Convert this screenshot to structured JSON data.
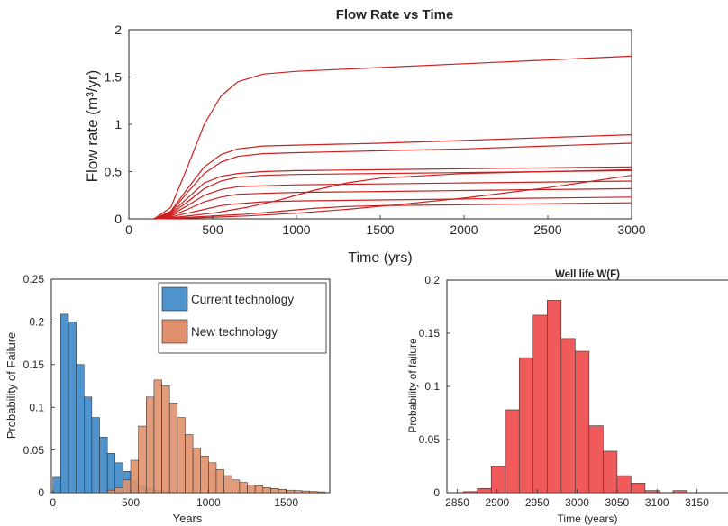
{
  "chart_data": [
    {
      "type": "line",
      "title": "Flow Rate vs Time",
      "xlabel": "Time (yrs)",
      "ylabel": "Flow rate (m³/yr)",
      "xlim": [
        0,
        3000
      ],
      "ylim": [
        0,
        2
      ],
      "xticks": [
        "0",
        "500",
        "1000",
        "1500",
        "2000",
        "2500",
        "3000"
      ],
      "yticks": [
        "0",
        "0.5",
        "1",
        "1.5",
        "2"
      ],
      "grid": false,
      "series_color": "#cc1f1f",
      "series": [
        {
          "x": [
            150,
            250,
            350,
            450,
            550,
            650,
            800,
            1000,
            1500,
            2000,
            2500,
            3000
          ],
          "y": [
            0,
            0.12,
            0.55,
            1.0,
            1.3,
            1.45,
            1.53,
            1.56,
            1.6,
            1.64,
            1.68,
            1.72
          ]
        },
        {
          "x": [
            150,
            250,
            350,
            450,
            550,
            650,
            800,
            1000,
            1500,
            2000,
            2500,
            3000
          ],
          "y": [
            0,
            0.08,
            0.32,
            0.55,
            0.68,
            0.74,
            0.77,
            0.78,
            0.8,
            0.83,
            0.86,
            0.89
          ]
        },
        {
          "x": [
            150,
            250,
            350,
            450,
            550,
            650,
            800,
            1000,
            1500,
            2000,
            2500,
            3000
          ],
          "y": [
            0,
            0.07,
            0.28,
            0.48,
            0.6,
            0.66,
            0.69,
            0.7,
            0.72,
            0.74,
            0.77,
            0.8
          ]
        },
        {
          "x": [
            150,
            250,
            350,
            450,
            550,
            650,
            800,
            1000,
            1500,
            2000,
            2500,
            3000
          ],
          "y": [
            0,
            0.06,
            0.22,
            0.38,
            0.45,
            0.48,
            0.5,
            0.51,
            0.52,
            0.53,
            0.54,
            0.55
          ]
        },
        {
          "x": [
            150,
            250,
            350,
            450,
            550,
            650,
            800,
            1000,
            1500,
            2000,
            2500,
            3000
          ],
          "y": [
            0,
            0.05,
            0.18,
            0.32,
            0.4,
            0.44,
            0.46,
            0.47,
            0.48,
            0.49,
            0.5,
            0.51
          ]
        },
        {
          "x": [
            150,
            250,
            350,
            450,
            550,
            650,
            800,
            1000,
            1500,
            2000,
            2500,
            3000
          ],
          "y": [
            0,
            0.04,
            0.14,
            0.25,
            0.31,
            0.34,
            0.35,
            0.36,
            0.37,
            0.38,
            0.39,
            0.4
          ]
        },
        {
          "x": [
            150,
            250,
            350,
            450,
            550,
            650,
            800,
            1000,
            1500,
            2000,
            2500,
            3000
          ],
          "y": [
            0,
            0.03,
            0.1,
            0.18,
            0.23,
            0.26,
            0.27,
            0.28,
            0.29,
            0.3,
            0.31,
            0.32
          ]
        },
        {
          "x": [
            150,
            250,
            350,
            450,
            550,
            650,
            800,
            1000,
            1500,
            2000,
            2500,
            3000
          ],
          "y": [
            0,
            0.02,
            0.06,
            0.1,
            0.14,
            0.16,
            0.18,
            0.19,
            0.2,
            0.21,
            0.22,
            0.23
          ]
        },
        {
          "x": [
            150,
            300,
            500,
            700,
            900,
            1100,
            1300,
            1500,
            2000,
            2500,
            3000
          ],
          "y": [
            0,
            0.02,
            0.06,
            0.12,
            0.2,
            0.3,
            0.38,
            0.43,
            0.48,
            0.5,
            0.52
          ]
        },
        {
          "x": [
            150,
            400,
            700,
            1000,
            1300,
            1600,
            2000,
            2500,
            3000
          ],
          "y": [
            0,
            0.01,
            0.03,
            0.06,
            0.1,
            0.15,
            0.22,
            0.33,
            0.46
          ]
        },
        {
          "x": [
            150,
            300,
            500,
            700,
            900,
            1100,
            1300,
            1500,
            2000,
            2500,
            3000
          ],
          "y": [
            0,
            0.01,
            0.03,
            0.05,
            0.08,
            0.11,
            0.13,
            0.14,
            0.15,
            0.16,
            0.17
          ]
        }
      ]
    },
    {
      "type": "bar",
      "subtype": "histogram",
      "xlabel": "Years",
      "ylabel": "Probability of Failure",
      "xlim": [
        -10,
        1780
      ],
      "ylim": [
        0,
        0.25
      ],
      "xticks": [
        "0",
        "500",
        "1000",
        "1500"
      ],
      "yticks": [
        "0",
        "0.05",
        "0.1",
        "0.15",
        "0.2",
        "0.25"
      ],
      "legend_position": "top-right",
      "series": [
        {
          "name": "Current technology",
          "color": "#4f94cd",
          "bin_start": 0,
          "bin_width": 50,
          "values": [
            0.018,
            0.209,
            0.2,
            0.15,
            0.112,
            0.088,
            0.065,
            0.046,
            0.035,
            0.025,
            0.014,
            0.008,
            0.005,
            0.003,
            0.002,
            0.001
          ]
        },
        {
          "name": "New technology",
          "color": "#e0916b",
          "bin_start": 350,
          "bin_width": 50,
          "values": [
            0.003,
            0.006,
            0.015,
            0.038,
            0.078,
            0.112,
            0.132,
            0.125,
            0.105,
            0.088,
            0.068,
            0.052,
            0.043,
            0.035,
            0.027,
            0.02,
            0.015,
            0.012,
            0.009,
            0.008,
            0.006,
            0.005,
            0.004,
            0.003,
            0.0025,
            0.002,
            0.0015,
            0.001
          ]
        }
      ]
    },
    {
      "type": "bar",
      "subtype": "histogram",
      "title": "Well life W(F)",
      "xlabel": "Time (years)",
      "ylabel": "Probability of failure",
      "xlim": [
        2837,
        3190
      ],
      "ylim": [
        0,
        0.2
      ],
      "xticks": [
        "2850",
        "2900",
        "2950",
        "3000",
        "3050",
        "3100",
        "3150"
      ],
      "yticks": [
        "0",
        "0.05",
        "0.1",
        "0.15",
        "0.2"
      ],
      "series": [
        {
          "color": "#f05a5a",
          "bin_start": 2857.5,
          "bin_width": 17.5,
          "values": [
            0.001,
            0.004,
            0.025,
            0.078,
            0.127,
            0.167,
            0.181,
            0.145,
            0.133,
            0.063,
            0.039,
            0.016,
            0.009,
            0.002,
            0,
            0.002
          ]
        }
      ]
    }
  ]
}
